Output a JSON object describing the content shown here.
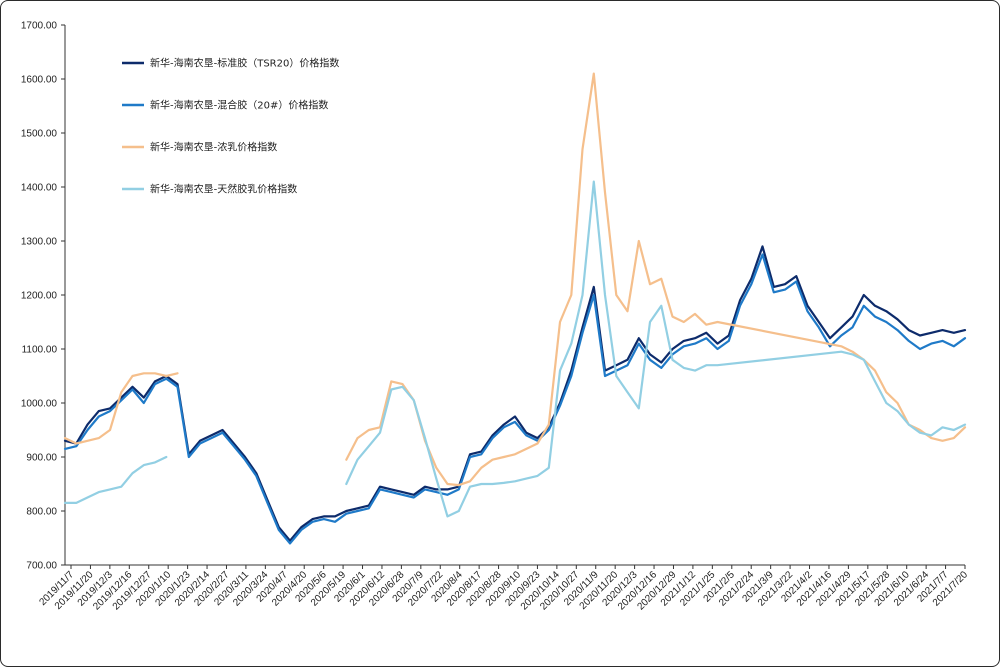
{
  "chart_data": {
    "type": "line",
    "title": "",
    "xlabel": "",
    "ylabel": "",
    "ylim": [
      700,
      1700
    ],
    "yticks": [
      "700.00",
      "800.00",
      "900.00",
      "1000.00",
      "1100.00",
      "1200.00",
      "1300.00",
      "1400.00",
      "1500.00",
      "1600.00",
      "1700.00"
    ],
    "xtick_labels": [
      "2019/11/7",
      "2019/11/20",
      "2019/12/3",
      "2019/12/16",
      "2019/12/27",
      "2020/1/10",
      "2020/1/23",
      "2020/2/14",
      "2020/2/27",
      "2020/3/11",
      "2020/3/24",
      "2020/4/7",
      "2020/4/20",
      "2020/5/6",
      "2020/5/19",
      "2020/6/1",
      "2020/6/12",
      "2020/6/28",
      "2020/7/9",
      "2020/7/22",
      "2020/8/4",
      "2020/8/17",
      "2020/8/28",
      "2020/9/10",
      "2020/9/23",
      "2020/10/14",
      "2020/10/27",
      "2020/11/9",
      "2020/11/20",
      "2020/12/3",
      "2020/12/16",
      "2020/12/29",
      "2021/1/12",
      "2021/1/25",
      "2021/2/5",
      "2021/2/24",
      "2021/3/9",
      "2021/3/22",
      "2021/4/2",
      "2021/4/16",
      "2021/4/29",
      "2021/5/17",
      "2021/5/28",
      "2021/6/10",
      "2021/6/24",
      "2021/7/7",
      "2021/7/20"
    ],
    "legend_position": "top-left",
    "grid": false,
    "series": [
      {
        "name": "新华-海南农垦-标准胶（TSR20）价格指数",
        "color": "#0d2b6b",
        "points": [
          [
            0,
            930
          ],
          [
            1,
            925
          ],
          [
            2,
            960
          ],
          [
            3,
            985
          ],
          [
            4,
            990
          ],
          [
            5,
            1010
          ],
          [
            6,
            1030
          ],
          [
            7,
            1010
          ],
          [
            8,
            1040
          ],
          [
            9,
            1050
          ],
          [
            10,
            1035
          ],
          [
            11,
            905
          ],
          [
            12,
            930
          ],
          [
            13,
            940
          ],
          [
            14,
            950
          ],
          [
            15,
            925
          ],
          [
            16,
            900
          ],
          [
            17,
            870
          ],
          [
            18,
            820
          ],
          [
            19,
            770
          ],
          [
            20,
            745
          ],
          [
            21,
            770
          ],
          [
            22,
            785
          ],
          [
            23,
            790
          ],
          [
            24,
            790
          ],
          [
            25,
            800
          ],
          [
            26,
            805
          ],
          [
            27,
            810
          ],
          [
            28,
            845
          ],
          [
            29,
            840
          ],
          [
            30,
            835
          ],
          [
            31,
            830
          ],
          [
            32,
            845
          ],
          [
            33,
            840
          ],
          [
            34,
            840
          ],
          [
            35,
            845
          ],
          [
            36,
            905
          ],
          [
            37,
            910
          ],
          [
            38,
            940
          ],
          [
            39,
            960
          ],
          [
            40,
            975
          ],
          [
            41,
            945
          ],
          [
            42,
            935
          ],
          [
            43,
            955
          ],
          [
            44,
            1000
          ],
          [
            45,
            1060
          ],
          [
            46,
            1140
          ],
          [
            47,
            1215
          ],
          [
            48,
            1060
          ],
          [
            49,
            1070
          ],
          [
            50,
            1080
          ],
          [
            51,
            1120
          ],
          [
            52,
            1090
          ],
          [
            53,
            1075
          ],
          [
            54,
            1100
          ],
          [
            55,
            1115
          ],
          [
            56,
            1120
          ],
          [
            57,
            1130
          ],
          [
            58,
            1110
          ],
          [
            59,
            1125
          ],
          [
            60,
            1190
          ],
          [
            61,
            1230
          ],
          [
            62,
            1290
          ],
          [
            63,
            1215
          ],
          [
            64,
            1220
          ],
          [
            65,
            1235
          ],
          [
            66,
            1180
          ],
          [
            67,
            1150
          ],
          [
            68,
            1120
          ],
          [
            69,
            1140
          ],
          [
            70,
            1160
          ],
          [
            71,
            1200
          ],
          [
            72,
            1180
          ],
          [
            73,
            1170
          ],
          [
            74,
            1155
          ],
          [
            75,
            1135
          ],
          [
            76,
            1125
          ],
          [
            77,
            1130
          ],
          [
            78,
            1135
          ],
          [
            79,
            1130
          ],
          [
            80,
            1135
          ]
        ],
        "gap_after": []
      },
      {
        "name": "新华-海南农垦-混合胶（20#）价格指数",
        "color": "#1f7ac8",
        "points": [
          [
            0,
            915
          ],
          [
            1,
            920
          ],
          [
            2,
            950
          ],
          [
            3,
            975
          ],
          [
            4,
            985
          ],
          [
            5,
            1005
          ],
          [
            6,
            1025
          ],
          [
            7,
            1000
          ],
          [
            8,
            1035
          ],
          [
            9,
            1045
          ],
          [
            10,
            1030
          ],
          [
            11,
            900
          ],
          [
            12,
            925
          ],
          [
            13,
            935
          ],
          [
            14,
            945
          ],
          [
            15,
            920
          ],
          [
            16,
            895
          ],
          [
            17,
            865
          ],
          [
            18,
            815
          ],
          [
            19,
            765
          ],
          [
            20,
            740
          ],
          [
            21,
            765
          ],
          [
            22,
            780
          ],
          [
            23,
            785
          ],
          [
            24,
            780
          ],
          [
            25,
            795
          ],
          [
            26,
            800
          ],
          [
            27,
            805
          ],
          [
            28,
            840
          ],
          [
            29,
            835
          ],
          [
            30,
            830
          ],
          [
            31,
            825
          ],
          [
            32,
            840
          ],
          [
            33,
            835
          ],
          [
            34,
            830
          ],
          [
            35,
            840
          ],
          [
            36,
            900
          ],
          [
            37,
            905
          ],
          [
            38,
            935
          ],
          [
            39,
            955
          ],
          [
            40,
            965
          ],
          [
            41,
            940
          ],
          [
            42,
            930
          ],
          [
            43,
            950
          ],
          [
            44,
            995
          ],
          [
            45,
            1050
          ],
          [
            46,
            1130
          ],
          [
            47,
            1200
          ],
          [
            48,
            1050
          ],
          [
            49,
            1060
          ],
          [
            50,
            1070
          ],
          [
            51,
            1110
          ],
          [
            52,
            1080
          ],
          [
            53,
            1065
          ],
          [
            54,
            1090
          ],
          [
            55,
            1105
          ],
          [
            56,
            1110
          ],
          [
            57,
            1120
          ],
          [
            58,
            1100
          ],
          [
            59,
            1115
          ],
          [
            60,
            1180
          ],
          [
            61,
            1220
          ],
          [
            62,
            1275
          ],
          [
            63,
            1205
          ],
          [
            64,
            1210
          ],
          [
            65,
            1225
          ],
          [
            66,
            1170
          ],
          [
            67,
            1140
          ],
          [
            68,
            1105
          ],
          [
            69,
            1125
          ],
          [
            70,
            1140
          ],
          [
            71,
            1180
          ],
          [
            72,
            1160
          ],
          [
            73,
            1150
          ],
          [
            74,
            1135
          ],
          [
            75,
            1115
          ],
          [
            76,
            1100
          ],
          [
            77,
            1110
          ],
          [
            78,
            1115
          ],
          [
            79,
            1105
          ],
          [
            80,
            1120
          ]
        ],
        "gap_after": []
      },
      {
        "name": "新华-海南农垦-浓乳价格指数",
        "color": "#f5bf8c",
        "points": [
          [
            0,
            935
          ],
          [
            1,
            925
          ],
          [
            2,
            930
          ],
          [
            3,
            935
          ],
          [
            4,
            950
          ],
          [
            5,
            1020
          ],
          [
            6,
            1050
          ],
          [
            7,
            1055
          ],
          [
            8,
            1055
          ],
          [
            9,
            1050
          ],
          [
            10,
            1055
          ],
          [
            25,
            895
          ],
          [
            26,
            935
          ],
          [
            27,
            950
          ],
          [
            28,
            955
          ],
          [
            29,
            1040
          ],
          [
            30,
            1035
          ],
          [
            31,
            1005
          ],
          [
            32,
            930
          ],
          [
            33,
            880
          ],
          [
            34,
            850
          ],
          [
            35,
            848
          ],
          [
            36,
            855
          ],
          [
            37,
            880
          ],
          [
            38,
            895
          ],
          [
            39,
            900
          ],
          [
            40,
            905
          ],
          [
            41,
            915
          ],
          [
            42,
            925
          ],
          [
            43,
            960
          ],
          [
            44,
            1150
          ],
          [
            45,
            1200
          ],
          [
            46,
            1470
          ],
          [
            47,
            1610
          ],
          [
            48,
            1390
          ],
          [
            49,
            1200
          ],
          [
            50,
            1170
          ],
          [
            51,
            1300
          ],
          [
            52,
            1220
          ],
          [
            53,
            1230
          ],
          [
            54,
            1160
          ],
          [
            55,
            1150
          ],
          [
            56,
            1165
          ],
          [
            57,
            1145
          ],
          [
            58,
            1150
          ],
          [
            69,
            1105
          ],
          [
            70,
            1095
          ],
          [
            71,
            1080
          ],
          [
            72,
            1060
          ],
          [
            73,
            1020
          ],
          [
            74,
            1000
          ],
          [
            75,
            960
          ],
          [
            76,
            950
          ],
          [
            77,
            935
          ],
          [
            78,
            930
          ],
          [
            79,
            935
          ],
          [
            80,
            955
          ]
        ],
        "gap_after": [
          10
        ]
      },
      {
        "name": "新华-海南农垦-天然胶乳价格指数",
        "color": "#92cfe3",
        "points": [
          [
            0,
            815
          ],
          [
            1,
            815
          ],
          [
            2,
            825
          ],
          [
            3,
            835
          ],
          [
            4,
            840
          ],
          [
            5,
            845
          ],
          [
            6,
            870
          ],
          [
            7,
            885
          ],
          [
            8,
            890
          ],
          [
            9,
            900
          ],
          [
            25,
            850
          ],
          [
            26,
            895
          ],
          [
            27,
            920
          ],
          [
            28,
            945
          ],
          [
            29,
            1025
          ],
          [
            30,
            1030
          ],
          [
            31,
            1005
          ],
          [
            32,
            935
          ],
          [
            33,
            860
          ],
          [
            34,
            790
          ],
          [
            35,
            800
          ],
          [
            36,
            845
          ],
          [
            37,
            850
          ],
          [
            38,
            850
          ],
          [
            39,
            852
          ],
          [
            40,
            855
          ],
          [
            41,
            860
          ],
          [
            42,
            865
          ],
          [
            43,
            880
          ],
          [
            44,
            1060
          ],
          [
            45,
            1110
          ],
          [
            46,
            1200
          ],
          [
            47,
            1410
          ],
          [
            48,
            1200
          ],
          [
            49,
            1050
          ],
          [
            50,
            1020
          ],
          [
            51,
            990
          ],
          [
            52,
            1150
          ],
          [
            53,
            1180
          ],
          [
            54,
            1080
          ],
          [
            55,
            1065
          ],
          [
            56,
            1060
          ],
          [
            57,
            1070
          ],
          [
            58,
            1070
          ],
          [
            69,
            1095
          ],
          [
            70,
            1090
          ],
          [
            71,
            1080
          ],
          [
            72,
            1040
          ],
          [
            73,
            1000
          ],
          [
            74,
            985
          ],
          [
            75,
            960
          ],
          [
            76,
            945
          ],
          [
            77,
            940
          ],
          [
            78,
            955
          ],
          [
            79,
            950
          ],
          [
            80,
            960
          ]
        ],
        "gap_after": [
          9
        ]
      }
    ]
  }
}
